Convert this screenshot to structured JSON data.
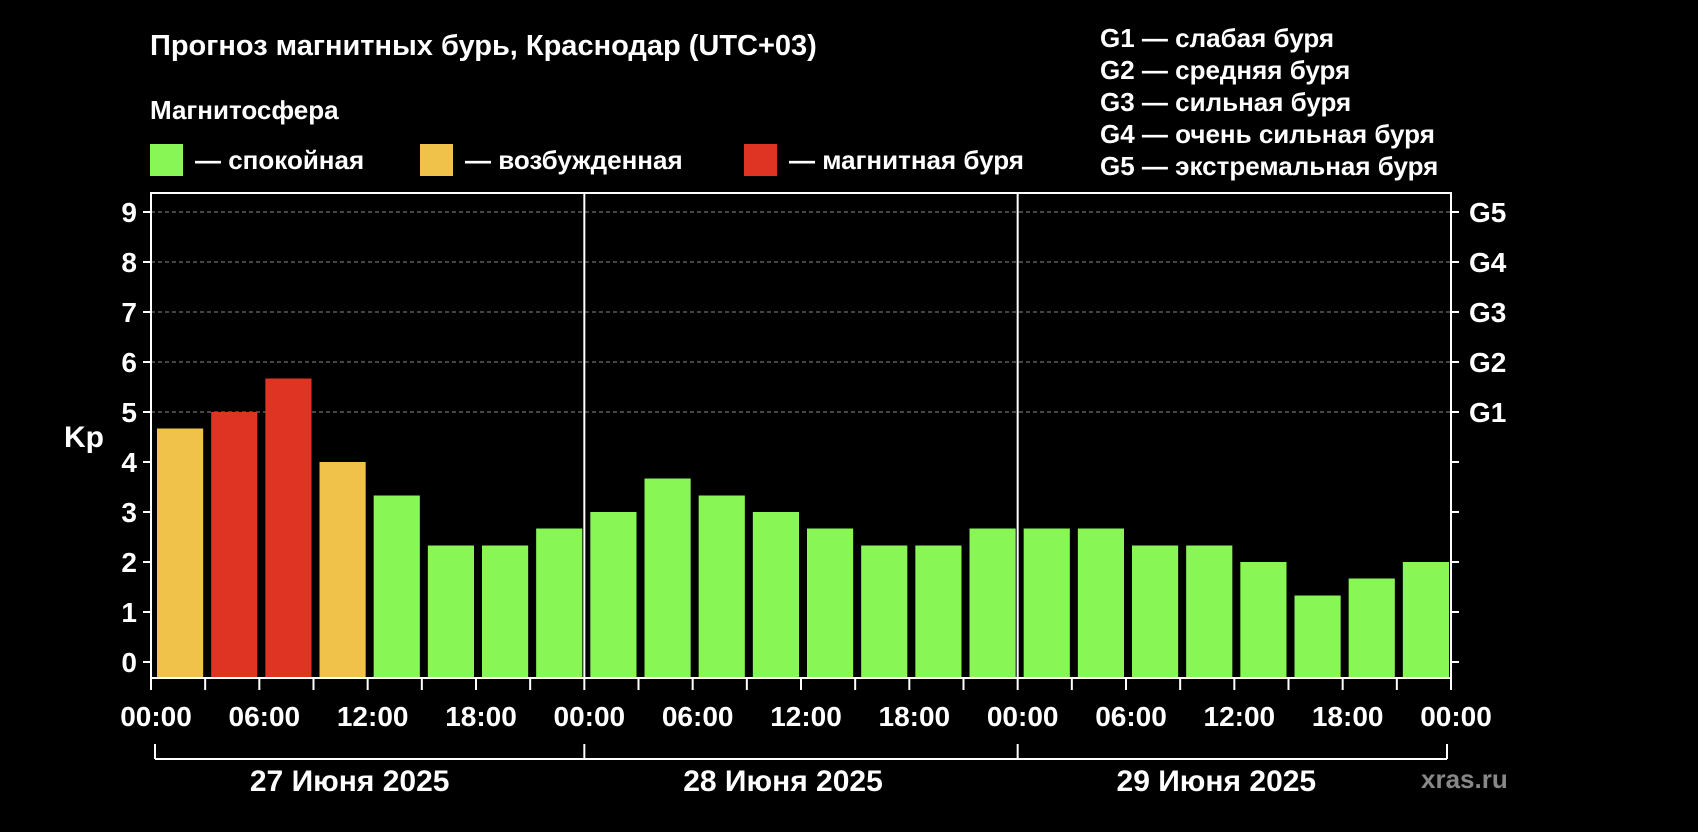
{
  "title": "Прогноз магнитных бурь, Краснодар (UTC+03)",
  "subtitle": "Магнитосфера",
  "legend": [
    {
      "label": "— спокойная",
      "color": "#88f655"
    },
    {
      "label": "— возбужденная",
      "color": "#f0c24a"
    },
    {
      "label": "— магнитная буря",
      "color": "#df3323"
    }
  ],
  "g_legend": [
    "G1 — слабая буря",
    "G2 — средняя буря",
    "G3 — сильная буря",
    "G4 — очень сильная буря",
    "G5 — экстремальная буря"
  ],
  "watermark": "xras.ru",
  "colors": {
    "quiet": "#88f655",
    "active": "#f0c24a",
    "storm": "#df3323",
    "background": "#000000",
    "axis": "#ffffff",
    "grid": "#888888"
  },
  "chart_data": {
    "type": "bar",
    "ylabel": "Kp",
    "ylim": [
      0,
      9
    ],
    "y_ticks": [
      "0",
      "1",
      "2",
      "3",
      "4",
      "5",
      "6",
      "7",
      "8",
      "9"
    ],
    "g_levels": [
      {
        "kp": 5,
        "label": "G1"
      },
      {
        "kp": 6,
        "label": "G2"
      },
      {
        "kp": 7,
        "label": "G3"
      },
      {
        "kp": 8,
        "label": "G4"
      },
      {
        "kp": 9,
        "label": "G5"
      }
    ],
    "x_tick_labels": [
      "00:00",
      "06:00",
      "12:00",
      "18:00",
      "00:00",
      "06:00",
      "12:00",
      "18:00",
      "00:00",
      "06:00",
      "12:00",
      "18:00",
      "00:00"
    ],
    "days": [
      "27 Июня 2025",
      "28 Июня 2025",
      "29 Июня 2025"
    ],
    "bars_per_day": 8,
    "values": [
      4.67,
      5.0,
      5.67,
      4.0,
      3.33,
      2.33,
      2.33,
      2.67,
      3.0,
      3.67,
      3.33,
      3.0,
      2.67,
      2.33,
      2.33,
      2.67,
      2.67,
      2.67,
      2.33,
      2.33,
      2.0,
      1.33,
      1.67,
      2.0
    ],
    "levels": [
      "active",
      "storm",
      "storm",
      "active",
      "quiet",
      "quiet",
      "quiet",
      "quiet",
      "quiet",
      "quiet",
      "quiet",
      "quiet",
      "quiet",
      "quiet",
      "quiet",
      "quiet",
      "quiet",
      "quiet",
      "quiet",
      "quiet",
      "quiet",
      "quiet",
      "quiet",
      "quiet"
    ],
    "grid": true
  }
}
